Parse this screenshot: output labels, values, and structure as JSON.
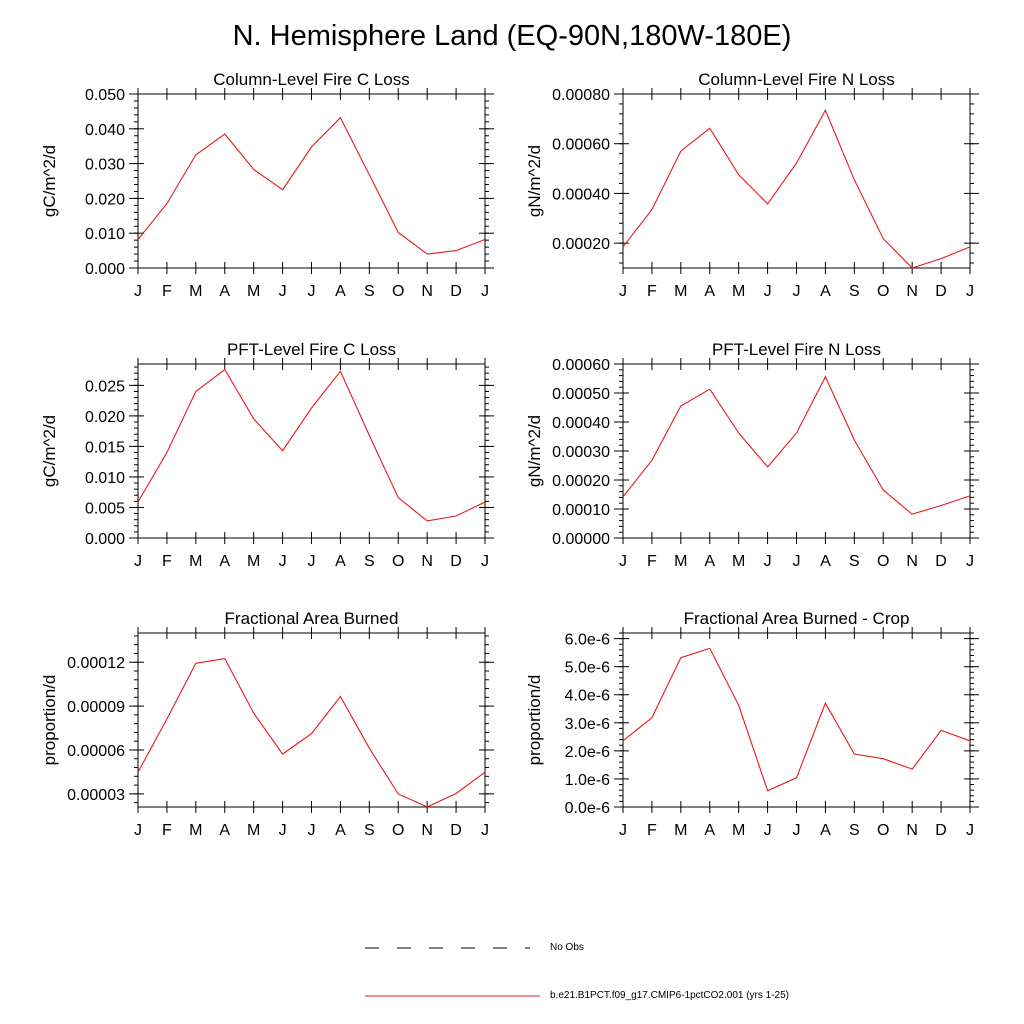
{
  "figure": {
    "title": "N. Hemisphere Land (EQ-90N,180W-180E)"
  },
  "months": [
    "J",
    "F",
    "M",
    "A",
    "M",
    "J",
    "J",
    "A",
    "S",
    "O",
    "N",
    "D",
    "J"
  ],
  "colors": {
    "model": "#e41a1c",
    "axis": "#000000",
    "obs": "#000000"
  },
  "legend": {
    "obs_label": "No Obs",
    "model_label": "b.e21.B1PCT.f09_g17.CMIP6-1pctCO2.001 (yrs 1-25)"
  },
  "chart_data": [
    {
      "type": "line",
      "title": "Column-Level Fire C Loss",
      "ylabel": "gC/m^2/d",
      "ylim": [
        0.0,
        0.05
      ],
      "yticks": [
        0.0,
        0.01,
        0.02,
        0.03,
        0.04,
        0.05
      ],
      "ytick_labels": [
        "0.000",
        "0.010",
        "0.020",
        "0.030",
        "0.040",
        "0.050"
      ],
      "series": [
        {
          "values": [
            0.0082,
            0.0185,
            0.0325,
            0.0385,
            0.0283,
            0.0225,
            0.0348,
            0.0432,
            0.0268,
            0.0102,
            0.004,
            0.005,
            0.0082
          ]
        }
      ]
    },
    {
      "type": "line",
      "title": "Column-Level Fire N Loss",
      "ylabel": "gN/m^2/d",
      "ylim": [
        0.0001,
        0.0008
      ],
      "yticks": [
        0.0002,
        0.0004,
        0.0006,
        0.0008
      ],
      "ytick_labels": [
        "0.00020",
        "0.00040",
        "0.00060",
        "0.00080"
      ],
      "series": [
        {
          "values": [
            0.000185,
            0.000335,
            0.00057,
            0.000662,
            0.000475,
            0.000358,
            0.000522,
            0.000735,
            0.000455,
            0.000218,
            0.0001,
            0.000138,
            0.000185
          ]
        }
      ]
    },
    {
      "type": "line",
      "title": "PFT-Level Fire C Loss",
      "ylabel": "gC/m^2/d",
      "ylim": [
        0.0,
        0.0285
      ],
      "yticks": [
        0.0,
        0.005,
        0.01,
        0.015,
        0.02,
        0.025
      ],
      "ytick_labels": [
        "0.000",
        "0.005",
        "0.010",
        "0.015",
        "0.020",
        "0.025"
      ],
      "series": [
        {
          "values": [
            0.0059,
            0.014,
            0.024,
            0.0276,
            0.0195,
            0.0143,
            0.0213,
            0.0273,
            0.0168,
            0.0066,
            0.0028,
            0.0036,
            0.0059
          ]
        }
      ]
    },
    {
      "type": "line",
      "title": "PFT-Level Fire N Loss",
      "ylabel": "gN/m^2/d",
      "ylim": [
        0.0,
        0.0006
      ],
      "yticks": [
        0.0,
        0.0001,
        0.0002,
        0.0003,
        0.0004,
        0.0005,
        0.0006
      ],
      "ytick_labels": [
        "0.00000",
        "0.00010",
        "0.00020",
        "0.00030",
        "0.00040",
        "0.00050",
        "0.00060"
      ],
      "series": [
        {
          "values": [
            0.000142,
            0.000268,
            0.000455,
            0.000513,
            0.000362,
            0.000245,
            0.000362,
            0.000556,
            0.000338,
            0.000165,
            8.2e-05,
            0.000112,
            0.000145
          ]
        }
      ]
    },
    {
      "type": "line",
      "title": "Fractional Area Burned",
      "ylabel": "proportion/d",
      "ylim": [
        2.1e-05,
        0.00014
      ],
      "yticks": [
        3e-05,
        6e-05,
        9e-05,
        0.00012
      ],
      "ytick_labels": [
        "0.00003",
        "0.00006",
        "0.00009",
        "0.00012"
      ],
      "series": [
        {
          "values": [
            4.48e-05,
            8.12e-05,
            0.0001193,
            0.0001225,
            8.52e-05,
            5.72e-05,
            7.12e-05,
            9.66e-05,
            6.12e-05,
            2.99e-05,
            2.11e-05,
            3.02e-05,
            4.48e-05
          ]
        }
      ]
    },
    {
      "type": "line",
      "title": "Fractional Area Burned - Crop",
      "ylabel": "proportion/d",
      "ylim": [
        0.0,
        6.2e-06
      ],
      "yticks": [
        0.0,
        1e-06,
        2e-06,
        3e-06,
        4e-06,
        5e-06,
        6e-06
      ],
      "ytick_labels": [
        "0.0e-6",
        "1.0e-6",
        "2.0e-6",
        "3.0e-6",
        "4.0e-6",
        "5.0e-6",
        "6.0e-6"
      ],
      "series": [
        {
          "values": [
            2.36e-06,
            3.18e-06,
            5.32e-06,
            5.65e-06,
            3.62e-06,
            5.8e-07,
            1.04e-06,
            3.7e-06,
            1.89e-06,
            1.72e-06,
            1.35e-06,
            2.73e-06,
            2.36e-06
          ]
        }
      ]
    }
  ]
}
